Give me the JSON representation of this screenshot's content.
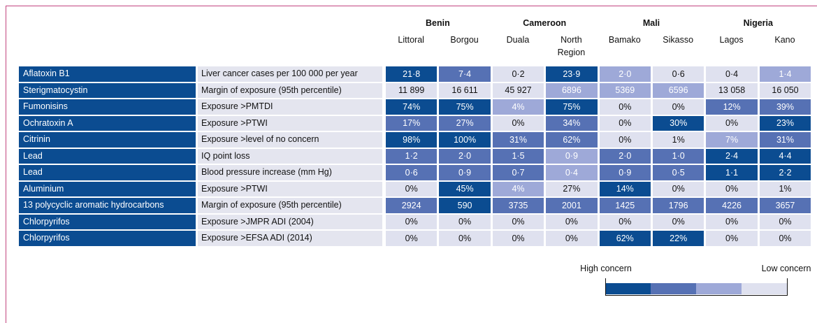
{
  "header": {
    "countries": [
      {
        "name": "Benin",
        "sites": [
          "Littoral",
          "Borgou"
        ]
      },
      {
        "name": "Cameroon",
        "sites": [
          "Duala",
          "North Region"
        ]
      },
      {
        "name": "Mali",
        "sites": [
          "Bamako",
          "Sikasso"
        ]
      },
      {
        "name": "Nigeria",
        "sites": [
          "Lagos",
          "Kano"
        ]
      }
    ]
  },
  "rows": [
    {
      "hazard": "Aflatoxin B1",
      "measure": "Liver cancer cases per 100 000 per year",
      "values": [
        "21·8",
        "7·4",
        "0·2",
        "23·9",
        "2·0",
        "0·6",
        "0·4",
        "1·4"
      ],
      "levels": [
        1,
        2,
        4,
        1,
        3,
        4,
        4,
        3
      ]
    },
    {
      "hazard": "Sterigmatocystin",
      "measure": "Margin of exposure (95th percentile)",
      "values": [
        "11 899",
        "16 611",
        "45 927",
        "6896",
        "5369",
        "6596",
        "13 058",
        "16 050"
      ],
      "levels": [
        4,
        4,
        4,
        3,
        3,
        3,
        4,
        4
      ]
    },
    {
      "hazard": "Fumonisins",
      "measure": "Exposure >PMTDI",
      "values": [
        "74%",
        "75%",
        "4%",
        "75%",
        "0%",
        "0%",
        "12%",
        "39%"
      ],
      "levels": [
        1,
        1,
        3,
        1,
        4,
        4,
        2,
        2
      ]
    },
    {
      "hazard": "Ochratoxin A",
      "measure": "Exposure >PTWI",
      "values": [
        "17%",
        "27%",
        "0%",
        "34%",
        "0%",
        "30%",
        "0%",
        "23%"
      ],
      "levels": [
        2,
        2,
        4,
        2,
        4,
        1,
        4,
        1
      ]
    },
    {
      "hazard": "Citrinin",
      "measure": "Exposure >level of no concern",
      "values": [
        "98%",
        "100%",
        "31%",
        "62%",
        "0%",
        "1%",
        "7%",
        "31%"
      ],
      "levels": [
        1,
        1,
        2,
        2,
        4,
        4,
        3,
        2
      ]
    },
    {
      "hazard": "Lead",
      "measure": "IQ point loss",
      "values": [
        "1·2",
        "2·0",
        "1·5",
        "0·9",
        "2·0",
        "1·0",
        "2·4",
        "4·4"
      ],
      "levels": [
        2,
        2,
        2,
        3,
        2,
        2,
        1,
        1
      ]
    },
    {
      "hazard": "Lead",
      "measure": "Blood pressure increase (mm Hg)",
      "values": [
        "0·6",
        "0·9",
        "0·7",
        "0·4",
        "0·9",
        "0·5",
        "1·1",
        "2·2"
      ],
      "levels": [
        2,
        2,
        2,
        3,
        2,
        2,
        1,
        1
      ]
    },
    {
      "hazard": "Aluminium",
      "measure": "Exposure >PTWI",
      "values": [
        "0%",
        "45%",
        "4%",
        "27%",
        "14%",
        "0%",
        "0%",
        "1%"
      ],
      "levels": [
        4,
        1,
        3,
        4,
        1,
        4,
        4,
        4
      ]
    },
    {
      "hazard": "13 polycyclic aromatic hydrocarbons",
      "measure": "Margin of exposure (95th percentile)",
      "values": [
        "2924",
        "590",
        "3735",
        "2001",
        "1425",
        "1796",
        "4226",
        "3657"
      ],
      "levels": [
        2,
        1,
        2,
        2,
        2,
        2,
        2,
        2
      ]
    },
    {
      "hazard": "Chlorpyrifos",
      "measure": "Exposure >JMPR ADI (2004)",
      "values": [
        "0%",
        "0%",
        "0%",
        "0%",
        "0%",
        "0%",
        "0%",
        "0%"
      ],
      "levels": [
        4,
        4,
        4,
        4,
        4,
        4,
        4,
        4
      ]
    },
    {
      "hazard": "Chlorpyrifos",
      "measure": "Exposure >EFSA ADI (2014)",
      "values": [
        "0%",
        "0%",
        "0%",
        "0%",
        "62%",
        "22%",
        "0%",
        "0%"
      ],
      "levels": [
        4,
        4,
        4,
        4,
        1,
        1,
        4,
        4
      ]
    }
  ],
  "legend": {
    "high": "High concern",
    "low": "Low concern",
    "colors": [
      "#0b4c91",
      "#5671b4",
      "#9ea9d8",
      "#dfe1ef"
    ]
  }
}
